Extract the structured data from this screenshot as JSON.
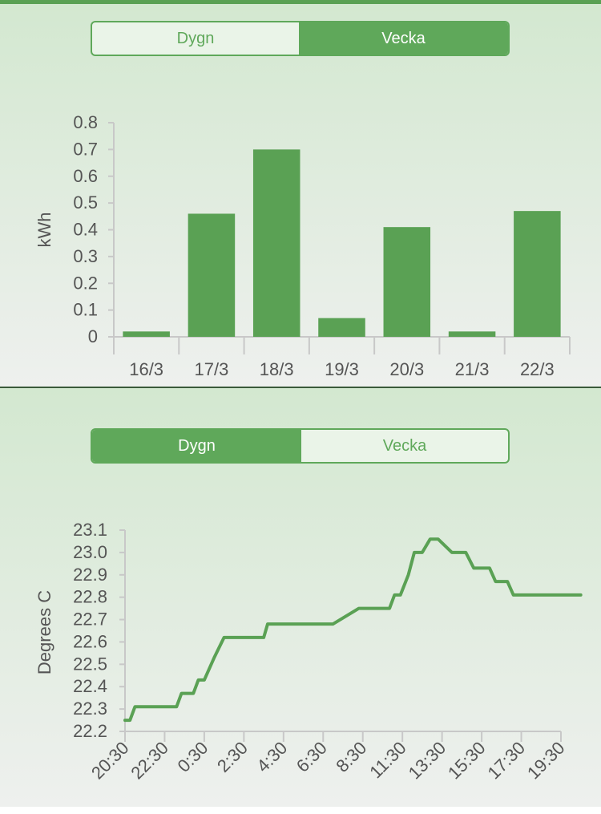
{
  "energy_panel": {
    "tabs": [
      {
        "label": "Dygn",
        "active": false
      },
      {
        "label": "Vecka",
        "active": true
      }
    ]
  },
  "temp_panel": {
    "tabs": [
      {
        "label": "Dygn",
        "active": true
      },
      {
        "label": "Vecka",
        "active": false
      }
    ]
  },
  "colors": {
    "accent": "#5fa85a",
    "bar": "#5aa154",
    "axis": "#c8c8c8",
    "text": "#555555"
  },
  "chart_data": [
    {
      "type": "bar",
      "categories": [
        "16/3",
        "17/3",
        "18/3",
        "19/3",
        "20/3",
        "21/3",
        "22/3"
      ],
      "values": [
        0.02,
        0.46,
        0.7,
        0.07,
        0.41,
        0.02,
        0.47
      ],
      "ylabel": "kWh",
      "ylim": [
        0,
        0.8
      ],
      "yticks": [
        "0",
        "0.1",
        "0.2",
        "0.3",
        "0.4",
        "0.5",
        "0.6",
        "0.7",
        "0.8"
      ],
      "grid": false
    },
    {
      "type": "line",
      "ylabel": "Degrees C",
      "ylim": [
        22.2,
        23.1
      ],
      "yticks": [
        "22.2",
        "22.3",
        "22.4",
        "22.5",
        "22.6",
        "22.7",
        "22.8",
        "22.9",
        "23.0",
        "23.1"
      ],
      "xticks": [
        "20:30",
        "22:30",
        "0:30",
        "2:30",
        "4:30",
        "6:30",
        "8:30",
        "11:30",
        "13:30",
        "15:30",
        "17:30",
        "19:30"
      ],
      "x_hours_since_first_tick": [
        0,
        0.25,
        0.5,
        2.6,
        2.85,
        3.45,
        3.7,
        4.0,
        4.5,
        5.0,
        5.4,
        7.0,
        7.2,
        7.55,
        10.1,
        10.5,
        11.8,
        12.05,
        12.35,
        13.35,
        13.6,
        13.9,
        14.3,
        14.6,
        15.0,
        15.4,
        15.8,
        16.5,
        17.2,
        17.6,
        18.4,
        18.7,
        19.3,
        19.6,
        20.6,
        22.0,
        23.0
      ],
      "y": [
        22.25,
        22.25,
        22.31,
        22.31,
        22.37,
        22.37,
        22.43,
        22.43,
        22.53,
        22.62,
        22.62,
        22.62,
        22.68,
        22.68,
        22.68,
        22.68,
        22.75,
        22.75,
        22.75,
        22.75,
        22.81,
        22.81,
        22.9,
        23.0,
        23.0,
        23.06,
        23.06,
        23.0,
        23.0,
        22.93,
        22.93,
        22.87,
        22.87,
        22.81,
        22.81,
        22.81,
        22.81
      ],
      "grid": false
    }
  ]
}
